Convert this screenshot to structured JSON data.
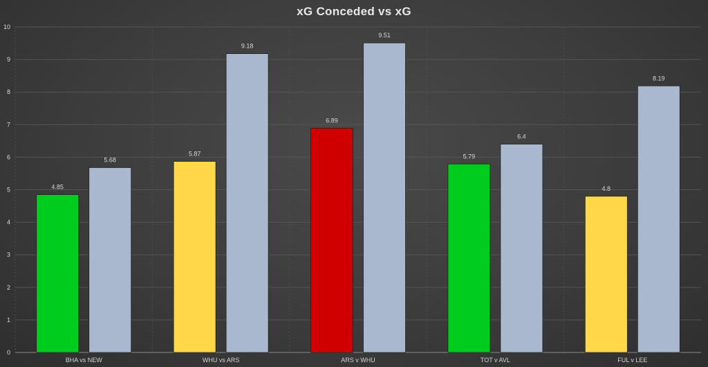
{
  "chart_data": {
    "type": "bar",
    "title": "xG Conceded vs xG",
    "categories": [
      "BHA vs NEW",
      "WHU vs ARS",
      "ARS v WHU",
      "TOT v AVL",
      "FUL v LEE"
    ],
    "series": [
      {
        "values": [
          4.85,
          5.87,
          6.89,
          5.79,
          4.8
        ],
        "colors": [
          "#00cc1e",
          "#ffd84a",
          "#d00000",
          "#00cc1e",
          "#ffd84a"
        ]
      },
      {
        "values": [
          5.68,
          9.18,
          9.51,
          6.4,
          8.19
        ],
        "color": "#aab8cf"
      }
    ],
    "data_labels": [
      [
        "4.85",
        "5.87",
        "6.89",
        "5.79",
        "4.8"
      ],
      [
        "5.68",
        "9.18",
        "9.51",
        "6.4",
        "8.19"
      ]
    ],
    "ylim": [
      0,
      10
    ],
    "yticks": [
      "0",
      "1",
      "2",
      "3",
      "4",
      "5",
      "6",
      "7",
      "8",
      "9",
      "10"
    ],
    "grid": true,
    "legend": "none",
    "xlabel": "",
    "ylabel": ""
  }
}
